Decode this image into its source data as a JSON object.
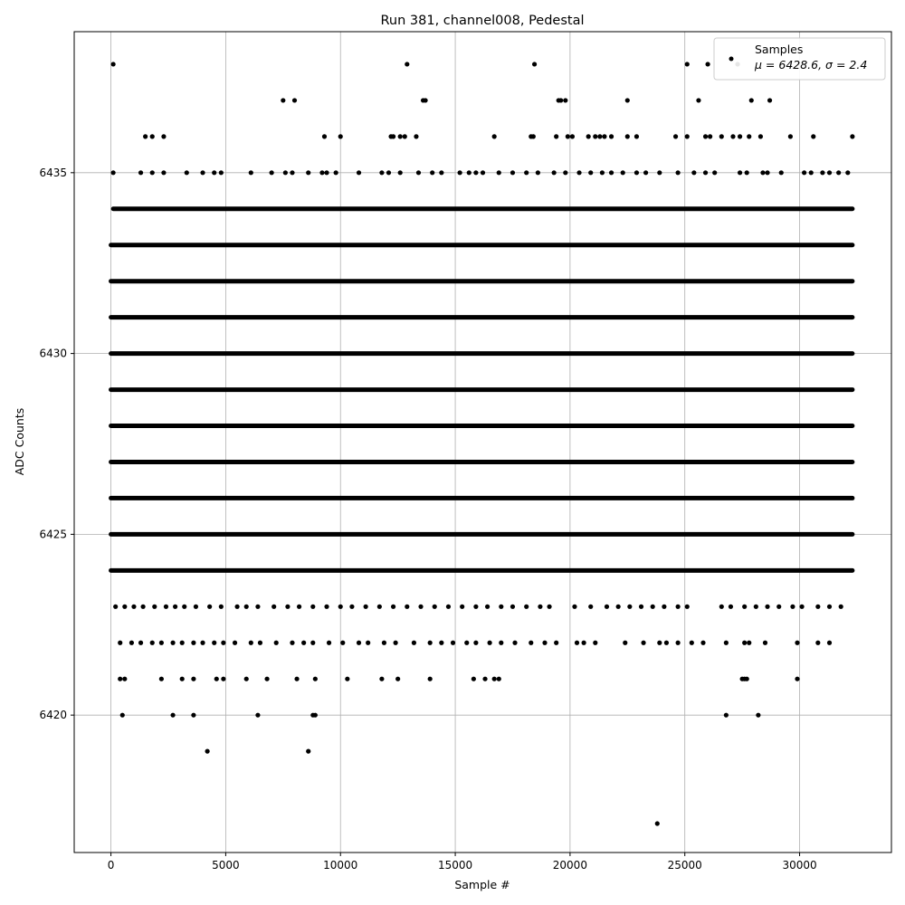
{
  "chart_data": {
    "type": "scatter",
    "title": "Run 381, channel008, Pedestal",
    "xlabel": "Sample #",
    "ylabel": "ADC Counts",
    "xlim": [
      -1600,
      34000
    ],
    "ylim": [
      6416.2,
      6438.9
    ],
    "x_ticks": [
      0,
      5000,
      10000,
      15000,
      20000,
      25000,
      30000
    ],
    "y_ticks": [
      6420,
      6425,
      6430,
      6435
    ],
    "grid": true,
    "legend": {
      "location": "top-right",
      "label": "Samples",
      "stats": "μ = 6428.6, σ = 2.4"
    },
    "marker_color": "#000000",
    "x_range_samples": [
      0,
      32300
    ],
    "series": [
      {
        "name": "Samples",
        "bands": [
          {
            "y": 6424,
            "x_min": 0,
            "x_max": 32300
          },
          {
            "y": 6425,
            "x_min": 0,
            "x_max": 32300
          },
          {
            "y": 6426,
            "x_min": 0,
            "x_max": 32300
          },
          {
            "y": 6427,
            "x_min": 0,
            "x_max": 32300
          },
          {
            "y": 6428,
            "x_min": 0,
            "x_max": 32300
          },
          {
            "y": 6429,
            "x_min": 0,
            "x_max": 32300
          },
          {
            "y": 6430,
            "x_min": 0,
            "x_max": 32300
          },
          {
            "y": 6431,
            "x_min": 0,
            "x_max": 32300
          },
          {
            "y": 6432,
            "x_min": 0,
            "x_max": 32300
          },
          {
            "y": 6433,
            "x_min": 0,
            "x_max": 32300
          },
          {
            "y": 6434,
            "x_min": 100,
            "x_max": 32300
          }
        ],
        "points": [
          [
            100,
            6438
          ],
          [
            12900,
            6438
          ],
          [
            18450,
            6438
          ],
          [
            25100,
            6438
          ],
          [
            26000,
            6438
          ],
          [
            27300,
            6438
          ],
          [
            7500,
            6437
          ],
          [
            8000,
            6437
          ],
          [
            13600,
            6437
          ],
          [
            13700,
            6437
          ],
          [
            19500,
            6437
          ],
          [
            19600,
            6437
          ],
          [
            19800,
            6437
          ],
          [
            22500,
            6437
          ],
          [
            25600,
            6437
          ],
          [
            27900,
            6437
          ],
          [
            28700,
            6437
          ],
          [
            1500,
            6436
          ],
          [
            1800,
            6436
          ],
          [
            2300,
            6436
          ],
          [
            9300,
            6436
          ],
          [
            10000,
            6436
          ],
          [
            12200,
            6436
          ],
          [
            12300,
            6436
          ],
          [
            12600,
            6436
          ],
          [
            12800,
            6436
          ],
          [
            13300,
            6436
          ],
          [
            16700,
            6436
          ],
          [
            18300,
            6436
          ],
          [
            18400,
            6436
          ],
          [
            19400,
            6436
          ],
          [
            19900,
            6436
          ],
          [
            20100,
            6436
          ],
          [
            20800,
            6436
          ],
          [
            21100,
            6436
          ],
          [
            21300,
            6436
          ],
          [
            21500,
            6436
          ],
          [
            21800,
            6436
          ],
          [
            22500,
            6436
          ],
          [
            22900,
            6436
          ],
          [
            24600,
            6436
          ],
          [
            25100,
            6436
          ],
          [
            25900,
            6436
          ],
          [
            26100,
            6436
          ],
          [
            26600,
            6436
          ],
          [
            27100,
            6436
          ],
          [
            27400,
            6436
          ],
          [
            27800,
            6436
          ],
          [
            28300,
            6436
          ],
          [
            29600,
            6436
          ],
          [
            30600,
            6436
          ],
          [
            32300,
            6436
          ],
          [
            100,
            6435
          ],
          [
            1300,
            6435
          ],
          [
            1800,
            6435
          ],
          [
            2300,
            6435
          ],
          [
            3300,
            6435
          ],
          [
            4000,
            6435
          ],
          [
            4500,
            6435
          ],
          [
            4800,
            6435
          ],
          [
            6100,
            6435
          ],
          [
            7000,
            6435
          ],
          [
            7600,
            6435
          ],
          [
            7900,
            6435
          ],
          [
            8600,
            6435
          ],
          [
            9200,
            6435
          ],
          [
            9400,
            6435
          ],
          [
            9800,
            6435
          ],
          [
            10800,
            6435
          ],
          [
            11800,
            6435
          ],
          [
            12100,
            6435
          ],
          [
            12600,
            6435
          ],
          [
            13400,
            6435
          ],
          [
            14000,
            6435
          ],
          [
            14400,
            6435
          ],
          [
            15200,
            6435
          ],
          [
            15600,
            6435
          ],
          [
            15900,
            6435
          ],
          [
            16200,
            6435
          ],
          [
            16900,
            6435
          ],
          [
            17500,
            6435
          ],
          [
            18100,
            6435
          ],
          [
            18600,
            6435
          ],
          [
            19300,
            6435
          ],
          [
            19800,
            6435
          ],
          [
            20400,
            6435
          ],
          [
            20900,
            6435
          ],
          [
            21400,
            6435
          ],
          [
            21800,
            6435
          ],
          [
            22300,
            6435
          ],
          [
            22900,
            6435
          ],
          [
            23300,
            6435
          ],
          [
            23900,
            6435
          ],
          [
            24700,
            6435
          ],
          [
            25400,
            6435
          ],
          [
            25900,
            6435
          ],
          [
            26300,
            6435
          ],
          [
            27400,
            6435
          ],
          [
            27700,
            6435
          ],
          [
            28400,
            6435
          ],
          [
            28600,
            6435
          ],
          [
            29200,
            6435
          ],
          [
            30200,
            6435
          ],
          [
            30500,
            6435
          ],
          [
            31000,
            6435
          ],
          [
            31300,
            6435
          ],
          [
            31700,
            6435
          ],
          [
            32100,
            6435
          ],
          [
            200,
            6423
          ],
          [
            600,
            6423
          ],
          [
            1000,
            6423
          ],
          [
            1400,
            6423
          ],
          [
            1900,
            6423
          ],
          [
            2400,
            6423
          ],
          [
            2800,
            6423
          ],
          [
            3200,
            6423
          ],
          [
            3700,
            6423
          ],
          [
            4300,
            6423
          ],
          [
            4800,
            6423
          ],
          [
            5500,
            6423
          ],
          [
            5900,
            6423
          ],
          [
            6400,
            6423
          ],
          [
            7100,
            6423
          ],
          [
            7700,
            6423
          ],
          [
            8200,
            6423
          ],
          [
            8800,
            6423
          ],
          [
            9400,
            6423
          ],
          [
            10000,
            6423
          ],
          [
            10500,
            6423
          ],
          [
            11100,
            6423
          ],
          [
            11700,
            6423
          ],
          [
            12300,
            6423
          ],
          [
            12900,
            6423
          ],
          [
            13500,
            6423
          ],
          [
            14100,
            6423
          ],
          [
            14700,
            6423
          ],
          [
            15300,
            6423
          ],
          [
            15900,
            6423
          ],
          [
            16400,
            6423
          ],
          [
            17000,
            6423
          ],
          [
            17500,
            6423
          ],
          [
            18100,
            6423
          ],
          [
            18700,
            6423
          ],
          [
            19100,
            6423
          ],
          [
            20200,
            6423
          ],
          [
            20900,
            6423
          ],
          [
            21600,
            6423
          ],
          [
            22100,
            6423
          ],
          [
            22600,
            6423
          ],
          [
            23100,
            6423
          ],
          [
            23600,
            6423
          ],
          [
            24100,
            6423
          ],
          [
            24700,
            6423
          ],
          [
            25100,
            6423
          ],
          [
            26600,
            6423
          ],
          [
            27000,
            6423
          ],
          [
            27600,
            6423
          ],
          [
            28100,
            6423
          ],
          [
            28600,
            6423
          ],
          [
            29100,
            6423
          ],
          [
            29700,
            6423
          ],
          [
            30100,
            6423
          ],
          [
            30800,
            6423
          ],
          [
            31300,
            6423
          ],
          [
            31800,
            6423
          ],
          [
            400,
            6422
          ],
          [
            900,
            6422
          ],
          [
            1300,
            6422
          ],
          [
            1800,
            6422
          ],
          [
            2200,
            6422
          ],
          [
            2700,
            6422
          ],
          [
            3100,
            6422
          ],
          [
            3600,
            6422
          ],
          [
            4000,
            6422
          ],
          [
            4500,
            6422
          ],
          [
            4900,
            6422
          ],
          [
            5400,
            6422
          ],
          [
            6100,
            6422
          ],
          [
            6500,
            6422
          ],
          [
            7200,
            6422
          ],
          [
            7900,
            6422
          ],
          [
            8400,
            6422
          ],
          [
            8800,
            6422
          ],
          [
            9500,
            6422
          ],
          [
            10100,
            6422
          ],
          [
            10800,
            6422
          ],
          [
            11200,
            6422
          ],
          [
            11900,
            6422
          ],
          [
            12400,
            6422
          ],
          [
            13200,
            6422
          ],
          [
            13900,
            6422
          ],
          [
            14400,
            6422
          ],
          [
            14900,
            6422
          ],
          [
            15500,
            6422
          ],
          [
            15900,
            6422
          ],
          [
            16500,
            6422
          ],
          [
            17000,
            6422
          ],
          [
            17600,
            6422
          ],
          [
            18300,
            6422
          ],
          [
            18900,
            6422
          ],
          [
            19400,
            6422
          ],
          [
            20300,
            6422
          ],
          [
            20600,
            6422
          ],
          [
            21100,
            6422
          ],
          [
            22400,
            6422
          ],
          [
            23200,
            6422
          ],
          [
            23900,
            6422
          ],
          [
            24200,
            6422
          ],
          [
            24700,
            6422
          ],
          [
            25300,
            6422
          ],
          [
            25800,
            6422
          ],
          [
            26800,
            6422
          ],
          [
            27600,
            6422
          ],
          [
            27800,
            6422
          ],
          [
            28500,
            6422
          ],
          [
            29900,
            6422
          ],
          [
            30800,
            6422
          ],
          [
            31300,
            6422
          ],
          [
            400,
            6421
          ],
          [
            600,
            6421
          ],
          [
            2200,
            6421
          ],
          [
            3100,
            6421
          ],
          [
            3600,
            6421
          ],
          [
            4600,
            6421
          ],
          [
            4900,
            6421
          ],
          [
            5900,
            6421
          ],
          [
            6800,
            6421
          ],
          [
            8100,
            6421
          ],
          [
            8900,
            6421
          ],
          [
            10300,
            6421
          ],
          [
            11800,
            6421
          ],
          [
            12500,
            6421
          ],
          [
            13900,
            6421
          ],
          [
            15800,
            6421
          ],
          [
            16300,
            6421
          ],
          [
            16700,
            6421
          ],
          [
            16900,
            6421
          ],
          [
            27500,
            6421
          ],
          [
            27600,
            6421
          ],
          [
            27700,
            6421
          ],
          [
            29900,
            6421
          ],
          [
            500,
            6420
          ],
          [
            2700,
            6420
          ],
          [
            3600,
            6420
          ],
          [
            6400,
            6420
          ],
          [
            8800,
            6420
          ],
          [
            8900,
            6420
          ],
          [
            26800,
            6420
          ],
          [
            28200,
            6420
          ],
          [
            4200,
            6419
          ],
          [
            8600,
            6419
          ],
          [
            23800,
            6417
          ]
        ]
      }
    ]
  }
}
